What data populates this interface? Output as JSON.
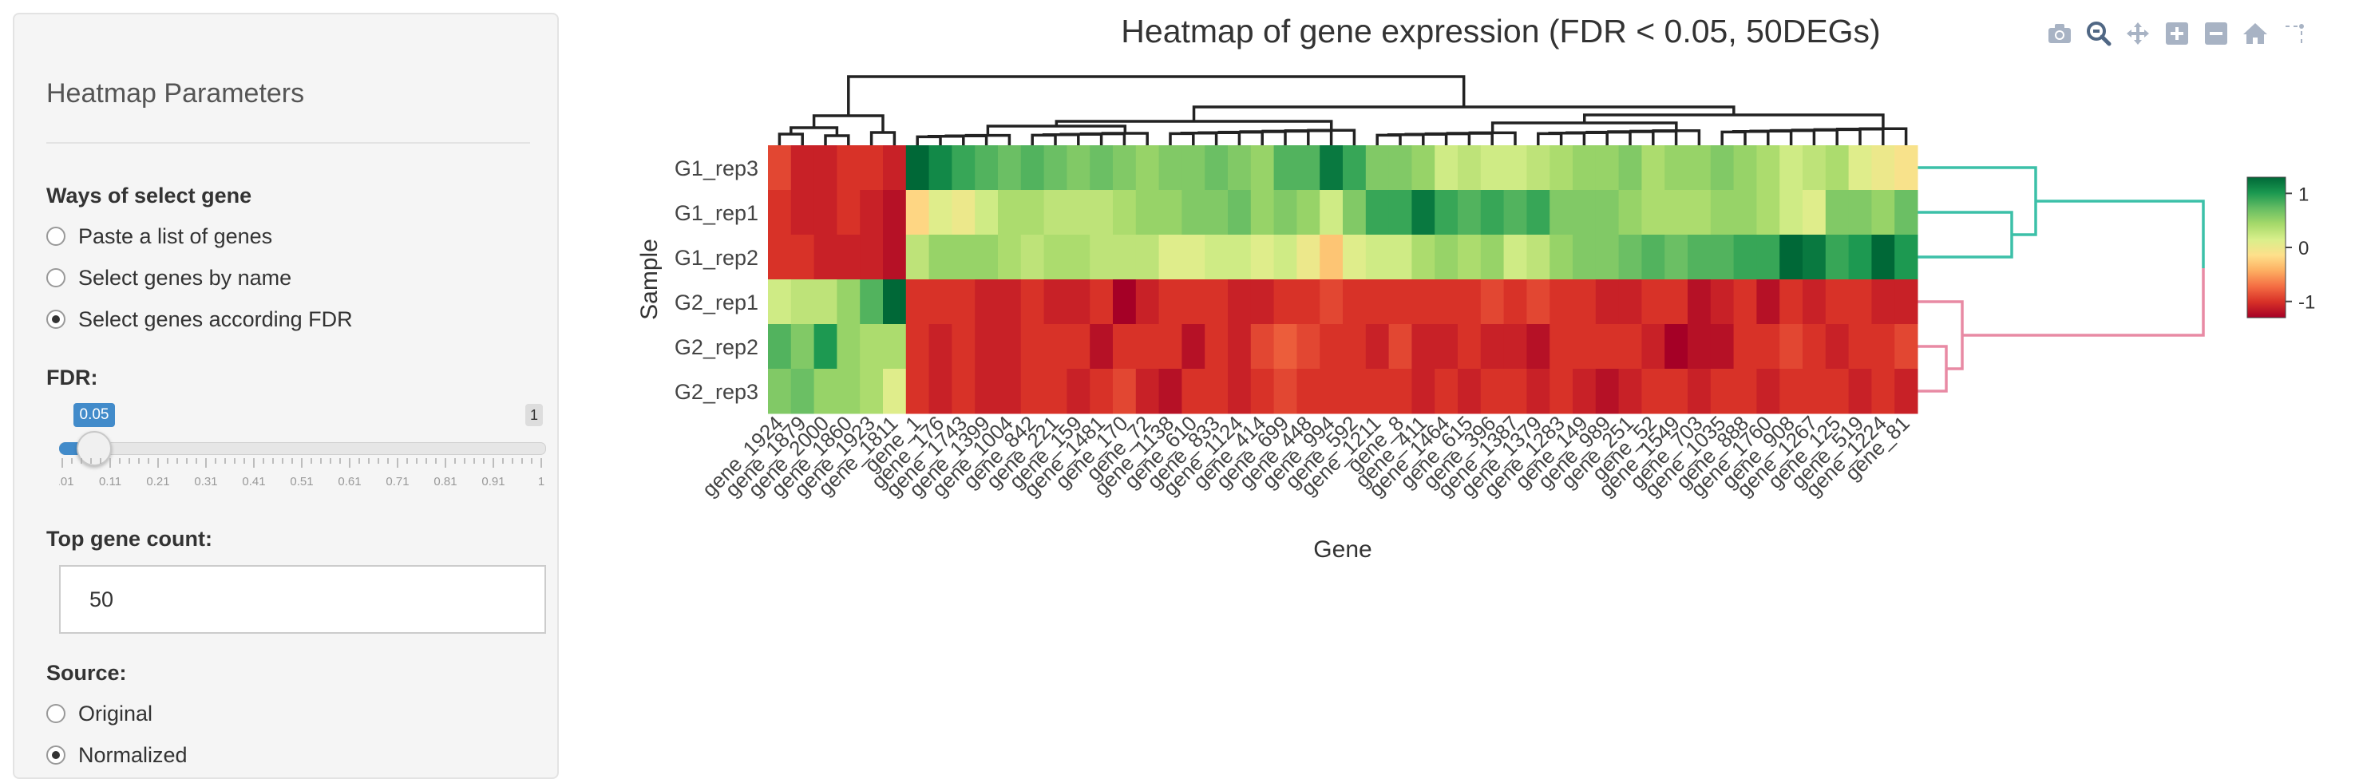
{
  "sidebar": {
    "title": "Heatmap Parameters",
    "gene_select": {
      "label": "Ways of select gene",
      "options": [
        "Paste a list of genes",
        "Select genes by name",
        "Select genes according FDR"
      ],
      "selected": 2
    },
    "fdr": {
      "label": "FDR:",
      "value": "0.05",
      "max": "1",
      "ticks": [
        "0.01",
        "0.11",
        "0.21",
        "0.31",
        "0.41",
        "0.51",
        "0.61",
        "0.71",
        "0.81",
        "0.91",
        "1"
      ],
      "level": 0.05
    },
    "top_gene": {
      "label": "Top gene count:",
      "value": "50"
    },
    "source": {
      "label": "Source:",
      "options": [
        "Original",
        "Normalized"
      ],
      "selected": 1
    }
  },
  "modebar": [
    "camera-icon",
    "zoom-icon",
    "pan-icon",
    "zoom-in-icon",
    "zoom-out-icon",
    "home-icon",
    "spike-lines-icon"
  ],
  "chart_data": {
    "type": "heatmap",
    "title": "Heatmap of gene expression (FDR < 0.05, 50DEGs)",
    "xlabel": "Gene",
    "ylabel": "Sample",
    "rows": [
      "G1_rep3",
      "G1_rep1",
      "G1_rep2",
      "G2_rep1",
      "G2_rep2",
      "G2_rep3"
    ],
    "columns": [
      "gene_1924",
      "gene_1879",
      "gene_2000",
      "gene_1860",
      "gene_1923",
      "gene_1811",
      "gene_1",
      "gene_176",
      "gene_1743",
      "gene_1399",
      "gene_1004",
      "gene_842",
      "gene_221",
      "gene_159",
      "gene_1481",
      "gene_170",
      "gene_72",
      "gene_1138",
      "gene_610",
      "gene_833",
      "gene_1124",
      "gene_414",
      "gene_699",
      "gene_448",
      "gene_994",
      "gene_592",
      "gene_1211",
      "gene_8",
      "gene_411",
      "gene_1464",
      "gene_615",
      "gene_396",
      "gene_1387",
      "gene_1379",
      "gene_1283",
      "gene_149",
      "gene_989",
      "gene_251",
      "gene_52",
      "gene_1549",
      "gene_703",
      "gene_1035",
      "gene_888",
      "gene_1760",
      "gene_908",
      "gene_1267",
      "gene_125",
      "gene_519",
      "gene_1224",
      "gene_81"
    ],
    "colorbar": {
      "ticks": [
        1,
        0,
        -1
      ],
      "colors": [
        "#a50026",
        "#f46d43",
        "#fee08b",
        "#d9ef8b",
        "#66bd63",
        "#006837"
      ]
    },
    "zrange": [
      -1.3,
      1.3
    ],
    "z": [
      [
        -0.9,
        -1.1,
        -1.1,
        -1.0,
        -1.0,
        -1.1,
        1.3,
        1.1,
        0.9,
        0.8,
        0.7,
        0.8,
        0.7,
        0.6,
        0.7,
        0.6,
        0.5,
        0.6,
        0.6,
        0.7,
        0.6,
        0.5,
        0.8,
        0.8,
        1.2,
        0.9,
        0.6,
        0.6,
        0.5,
        0.2,
        0.3,
        0.2,
        0.2,
        0.3,
        0.4,
        0.5,
        0.5,
        0.6,
        0.4,
        0.5,
        0.5,
        0.6,
        0.5,
        0.4,
        0.2,
        0.3,
        0.4,
        0.1,
        0.0,
        -0.1
      ],
      [
        -1.0,
        -1.1,
        -1.1,
        -1.0,
        -1.1,
        -1.2,
        -0.2,
        0.1,
        0.0,
        0.2,
        0.4,
        0.4,
        0.3,
        0.3,
        0.3,
        0.4,
        0.5,
        0.5,
        0.6,
        0.6,
        0.7,
        0.5,
        0.6,
        0.5,
        0.2,
        0.6,
        0.9,
        0.9,
        1.2,
        0.9,
        0.8,
        0.9,
        0.8,
        0.9,
        0.6,
        0.6,
        0.6,
        0.5,
        0.4,
        0.4,
        0.4,
        0.5,
        0.5,
        0.4,
        0.2,
        0.1,
        0.6,
        0.6,
        0.5,
        0.7
      ],
      [
        -1.0,
        -1.0,
        -1.1,
        -1.1,
        -1.1,
        -1.2,
        0.3,
        0.5,
        0.5,
        0.5,
        0.4,
        0.3,
        0.4,
        0.4,
        0.3,
        0.3,
        0.3,
        0.1,
        0.1,
        0.2,
        0.2,
        0.1,
        0.2,
        0.0,
        -0.3,
        0.1,
        0.2,
        0.2,
        0.4,
        0.5,
        0.4,
        0.5,
        0.2,
        0.3,
        0.5,
        0.6,
        0.6,
        0.7,
        0.8,
        0.7,
        0.8,
        0.8,
        0.9,
        0.9,
        1.3,
        1.2,
        0.9,
        1.0,
        1.3,
        1.0
      ],
      [
        0.2,
        0.3,
        0.3,
        0.5,
        0.8,
        1.3,
        -1.0,
        -1.0,
        -1.0,
        -1.1,
        -1.1,
        -1.0,
        -1.1,
        -1.1,
        -1.0,
        -1.3,
        -1.1,
        -1.0,
        -1.0,
        -1.0,
        -1.1,
        -1.1,
        -1.0,
        -1.0,
        -0.9,
        -1.0,
        -1.0,
        -1.0,
        -1.0,
        -1.0,
        -1.0,
        -0.9,
        -1.0,
        -0.9,
        -1.0,
        -1.0,
        -1.1,
        -1.1,
        -1.0,
        -1.0,
        -1.2,
        -1.1,
        -1.0,
        -1.2,
        -1.0,
        -1.1,
        -1.0,
        -1.0,
        -1.1,
        -1.1
      ],
      [
        0.8,
        0.6,
        1.0,
        0.5,
        0.4,
        0.4,
        -1.0,
        -1.1,
        -1.0,
        -1.1,
        -1.1,
        -1.0,
        -1.0,
        -1.0,
        -1.2,
        -1.0,
        -1.0,
        -1.0,
        -1.2,
        -1.0,
        -1.1,
        -0.9,
        -0.8,
        -0.9,
        -1.0,
        -1.0,
        -1.1,
        -0.9,
        -1.1,
        -1.1,
        -1.0,
        -1.1,
        -1.1,
        -1.2,
        -1.0,
        -1.0,
        -1.0,
        -1.0,
        -1.1,
        -1.3,
        -1.2,
        -1.2,
        -1.0,
        -1.0,
        -0.9,
        -1.0,
        -1.1,
        -1.0,
        -1.0,
        -0.9
      ],
      [
        0.6,
        0.7,
        0.5,
        0.5,
        0.4,
        0.1,
        -1.0,
        -1.1,
        -1.0,
        -1.1,
        -1.1,
        -1.0,
        -1.0,
        -1.1,
        -1.0,
        -0.9,
        -1.1,
        -1.2,
        -1.0,
        -1.0,
        -1.1,
        -1.0,
        -0.9,
        -1.0,
        -1.0,
        -1.0,
        -1.0,
        -1.0,
        -1.1,
        -1.0,
        -1.1,
        -1.0,
        -1.0,
        -1.1,
        -1.0,
        -1.1,
        -1.2,
        -1.1,
        -1.0,
        -1.0,
        -1.1,
        -1.0,
        -1.0,
        -1.1,
        -1.0,
        -1.0,
        -1.0,
        -1.1,
        -1.0,
        -1.1
      ]
    ]
  }
}
